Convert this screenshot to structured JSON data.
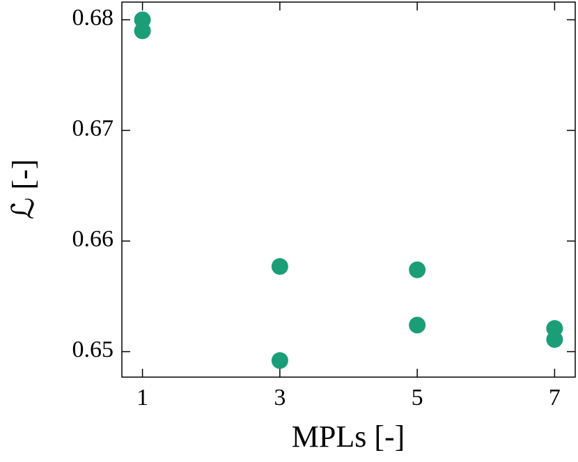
{
  "chart_data": {
    "type": "scatter",
    "xlabel": "MPLs [-]",
    "ylabel": "ℒ [-]",
    "series": [
      {
        "color": "#1b9e77",
        "x": [
          1,
          1,
          3,
          3,
          5,
          5,
          7,
          7
        ],
        "values": [
          0.68,
          0.679,
          0.6577,
          0.6492,
          0.6574,
          0.6524,
          0.6521,
          0.6511
        ]
      }
    ],
    "xlim": [
      0.7,
      7.3
    ],
    "xticks": [
      1,
      3,
      5,
      7
    ],
    "ylim": [
      0.6477,
      0.6816
    ],
    "yticks": [
      0.65,
      0.66,
      0.67,
      0.68
    ]
  }
}
